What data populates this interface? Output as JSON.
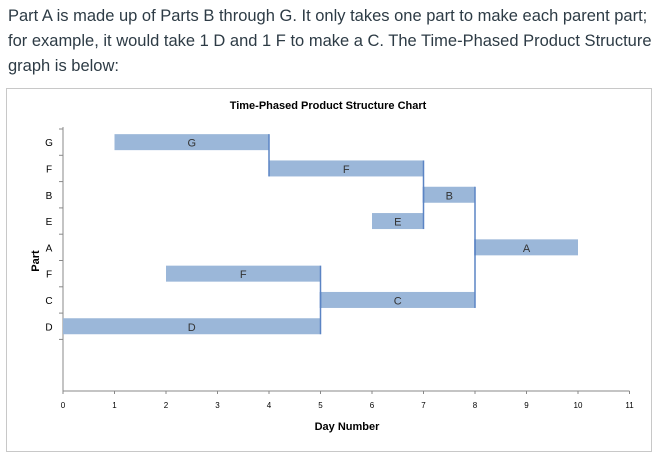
{
  "question": {
    "text": "Part A is made up of Parts B through G. It only takes one part to make each parent part; for example, it would take 1 D and 1 F to make a C. The Time-Phased Product Structure graph is below:"
  },
  "colors": {
    "bar_fill": "#9bb7d9",
    "connector": "#5b84c4",
    "text": "#2d3b45",
    "frame": "#c8c8c8"
  },
  "chart_data": {
    "type": "bar",
    "orientation": "horizontal",
    "title": "Time-Phased Product Structure Chart",
    "xlabel": "Day Number",
    "ylabel": "Part",
    "xlim": [
      0,
      11
    ],
    "x_ticks": [
      "0",
      "1",
      "2",
      "3",
      "4",
      "5",
      "6",
      "7",
      "8",
      "9",
      "10",
      "11"
    ],
    "y_categories": [
      "G",
      "F",
      "B",
      "E",
      "A",
      "F",
      "C",
      "D"
    ],
    "grid": false,
    "legend": "none",
    "bars": [
      {
        "row": "G",
        "start": 1,
        "end": 4,
        "label": "G"
      },
      {
        "row": "F",
        "start": 4,
        "end": 7,
        "label": "F"
      },
      {
        "row": "B",
        "start": 7,
        "end": 8,
        "label": "B"
      },
      {
        "row": "E",
        "start": 6,
        "end": 7,
        "label": "E"
      },
      {
        "row": "A",
        "start": 8,
        "end": 10,
        "label": "A"
      },
      {
        "row": "F",
        "start": 2,
        "end": 5,
        "label": "F"
      },
      {
        "row": "C",
        "start": 5,
        "end": 8,
        "label": "C"
      },
      {
        "row": "D",
        "start": 0,
        "end": 5,
        "label": "D"
      }
    ],
    "connectors": [
      {
        "x": 4,
        "from_row": 0,
        "to_row": 1
      },
      {
        "x": 7,
        "from_row": 1,
        "to_row": 2
      },
      {
        "x": 7,
        "from_row": 3,
        "to_row": 2
      },
      {
        "x": 8,
        "from_row": 2,
        "to_row": 4
      },
      {
        "x": 8,
        "from_row": 6,
        "to_row": 4
      },
      {
        "x": 5,
        "from_row": 5,
        "to_row": 6
      },
      {
        "x": 5,
        "from_row": 7,
        "to_row": 6
      }
    ]
  }
}
